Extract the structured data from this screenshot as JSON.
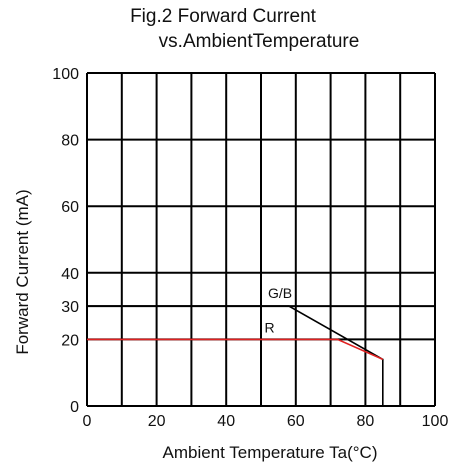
{
  "chart_data": {
    "type": "line",
    "title_line1": "Fig.2  Forward Current",
    "title_line2": "vs.AmbientTemperature",
    "xlabel": "Ambient Temperature Ta(°C)",
    "ylabel": "Forward Current  (mA)",
    "xlim": [
      0,
      100
    ],
    "ylim": [
      0,
      100
    ],
    "xticks": [
      0,
      20,
      40,
      60,
      80,
      100
    ],
    "yticks": [
      0,
      20,
      30,
      40,
      60,
      80,
      100
    ],
    "grid": true,
    "series": [
      {
        "name": "G/B",
        "color": "#000000",
        "x": [
          0,
          58,
          85,
          85
        ],
        "y": [
          30,
          30,
          14,
          0
        ]
      },
      {
        "name": "R",
        "color": "#e02020",
        "x": [
          0,
          72,
          85
        ],
        "y": [
          20,
          20,
          14
        ]
      }
    ]
  }
}
